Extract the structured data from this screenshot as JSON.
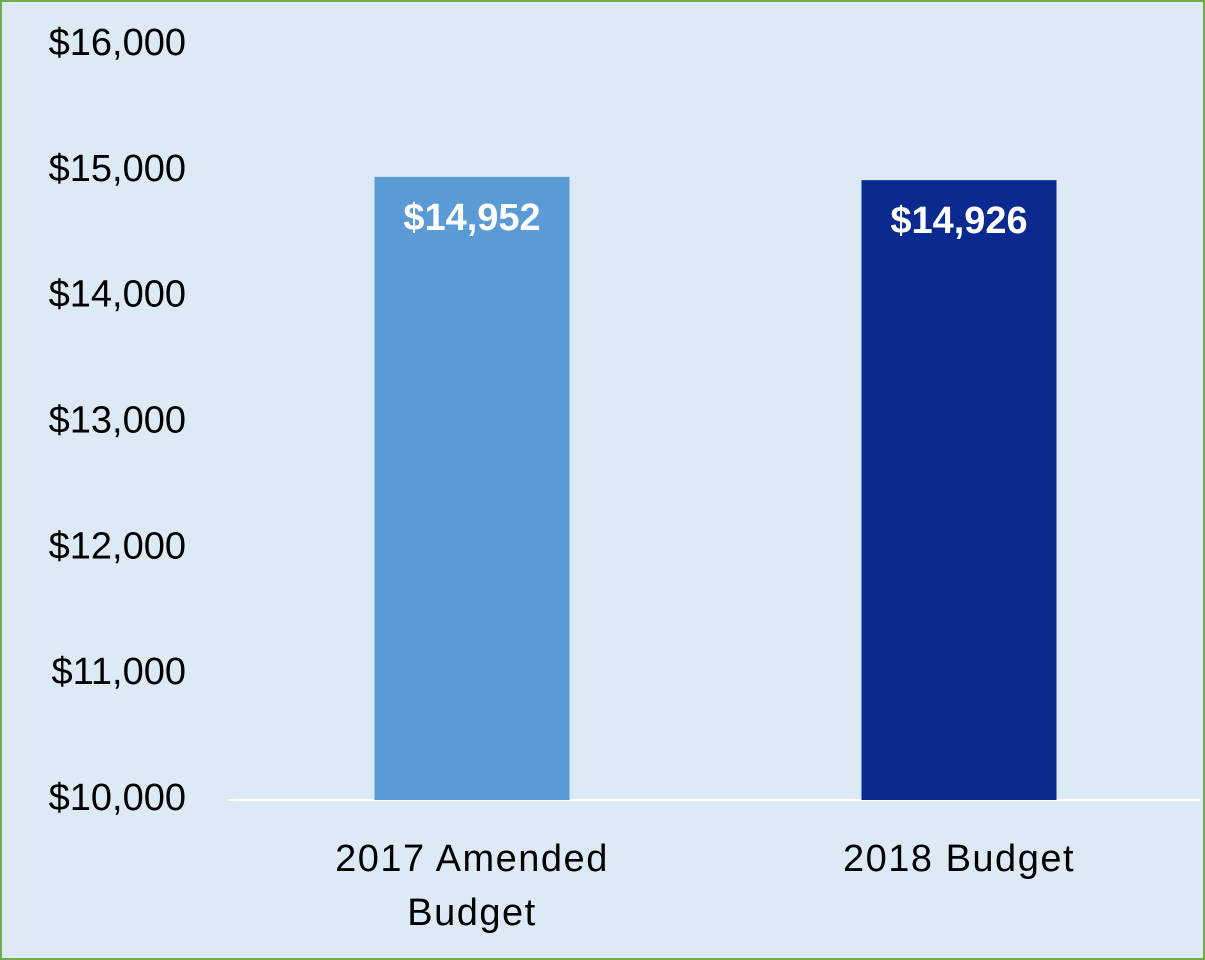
{
  "chart_data": {
    "type": "bar",
    "categories": [
      "2017 Amended Budget",
      "2018 Budget"
    ],
    "values": [
      14952,
      14926
    ],
    "value_labels": [
      "$14,952",
      "$14,926"
    ],
    "colors": [
      "#5b9bd5",
      "#0a2a8f"
    ],
    "ylim": [
      10000,
      16000
    ],
    "yticks": [
      {
        "value": 10000,
        "label": "$10,000"
      },
      {
        "value": 11000,
        "label": "$11,000"
      },
      {
        "value": 12000,
        "label": "$12,000"
      },
      {
        "value": 13000,
        "label": "$13,000"
      },
      {
        "value": 14000,
        "label": "$14,000"
      },
      {
        "value": 15000,
        "label": "$15,000"
      },
      {
        "value": 16000,
        "label": "$16,000"
      }
    ],
    "grid": false
  }
}
